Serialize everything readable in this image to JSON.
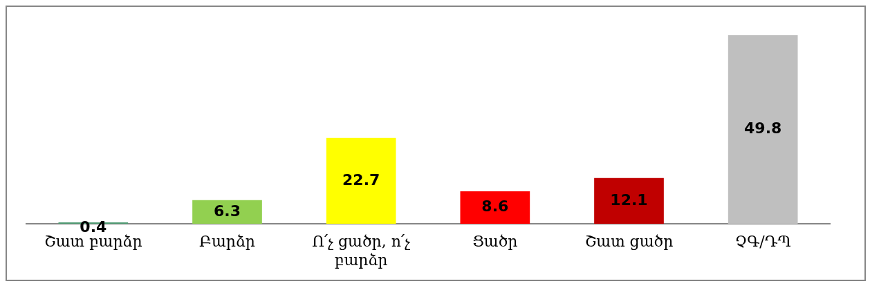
{
  "chart_data": {
    "type": "bar",
    "categories": [
      "Շատ բարձր",
      "Բարձր",
      "Ո՛չ ցածր, ո՛չ բարձր",
      "Ցածր",
      "Շատ ցածր",
      "ՉԳ/ԴՊ"
    ],
    "values": [
      0.4,
      6.3,
      22.7,
      8.6,
      12.1,
      49.8
    ],
    "colors": [
      "#4f9a72",
      "#92d050",
      "#ffff00",
      "#ff0000",
      "#c00000",
      "#bfbfbf"
    ],
    "data_labels": true,
    "relative": false,
    "grid": false,
    "legend": false
  }
}
